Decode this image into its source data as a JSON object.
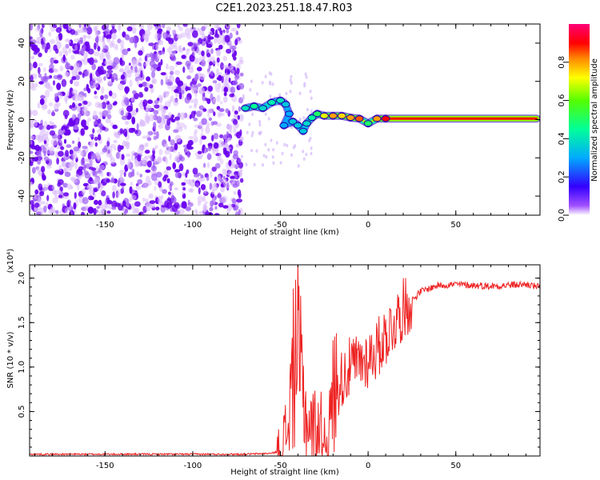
{
  "title": "C2E1.2023.251.18.47.R03",
  "chart_data": [
    {
      "type": "heatmap",
      "xlabel": "Height of straight line (km)",
      "ylabel": "Frequency (Hz)",
      "xlim": [
        -193,
        98
      ],
      "ylim": [
        -50,
        50
      ],
      "xticks": [
        -150,
        -100,
        -50,
        0,
        50
      ],
      "yticks": [
        -40,
        -20,
        0,
        20,
        40
      ],
      "colorbar": {
        "label": "Normalized spectral amplitude",
        "range": [
          0,
          1
        ],
        "ticks": [
          "0.0",
          "0.2",
          "0.4",
          "0.6",
          "0.8"
        ],
        "colors": [
          "#ffffff",
          "#7a00ff",
          "#0000ff",
          "#00c8ff",
          "#00ff80",
          "#80ff00",
          "#ffff00",
          "#ff8000",
          "#ff0000",
          "#ff0080"
        ]
      },
      "features": {
        "noise_region_x": [
          -193,
          -72
        ],
        "noise_amplitude": 0.12,
        "trace": [
          {
            "x": -70,
            "f": 6,
            "a": 0.4
          },
          {
            "x": -65,
            "f": 7,
            "a": 0.45
          },
          {
            "x": -60,
            "f": 6,
            "a": 0.38
          },
          {
            "x": -55,
            "f": 9,
            "a": 0.42
          },
          {
            "x": -50,
            "f": 10,
            "a": 0.4
          },
          {
            "x": -47,
            "f": 8,
            "a": 0.35
          },
          {
            "x": -45,
            "f": 3,
            "a": 0.3
          },
          {
            "x": -48,
            "f": -3,
            "a": 0.3
          },
          {
            "x": -43,
            "f": -1,
            "a": 0.35
          },
          {
            "x": -40,
            "f": -3,
            "a": 0.35
          },
          {
            "x": -37,
            "f": -6,
            "a": 0.35
          },
          {
            "x": -35,
            "f": -2,
            "a": 0.38
          },
          {
            "x": -32,
            "f": 1,
            "a": 0.45
          },
          {
            "x": -29,
            "f": 3,
            "a": 0.5
          },
          {
            "x": -25,
            "f": 2,
            "a": 0.7
          },
          {
            "x": -20,
            "f": 2,
            "a": 0.8
          },
          {
            "x": -15,
            "f": 2,
            "a": 0.75
          },
          {
            "x": -10,
            "f": 1,
            "a": 0.8
          },
          {
            "x": -5,
            "f": 0.5,
            "a": 0.85
          },
          {
            "x": 0,
            "f": -2,
            "a": 0.5
          },
          {
            "x": 5,
            "f": 0.5,
            "a": 0.8
          },
          {
            "x": 10,
            "f": 0.5,
            "a": 0.9
          },
          {
            "x": 96,
            "f": 0.5,
            "a": 0.9
          }
        ]
      }
    },
    {
      "type": "line",
      "xlabel": "Height of straight line (km)",
      "ylabel": "SNR (10 * v/v)",
      "y_multiplier": "(x10⁴)",
      "xlim": [
        -193,
        98
      ],
      "ylim": [
        0,
        2.15
      ],
      "xticks": [
        -150,
        -100,
        -50,
        0,
        50
      ],
      "yticks": [
        0.5,
        1.0,
        1.5,
        2.0
      ],
      "line_color": "#ee2222",
      "series": [
        {
          "x": [
            -193,
            -150,
            -100,
            -70,
            -55,
            -50,
            -46,
            -43,
            -41,
            -39,
            -37,
            -35,
            -32,
            -28,
            -25,
            -22,
            -20,
            -17,
            -14,
            -10,
            -5,
            0,
            5,
            10,
            15,
            20,
            25,
            30,
            40,
            50,
            60,
            70,
            80,
            90,
            97
          ],
          "y": [
            0.02,
            0.02,
            0.02,
            0.02,
            0.03,
            0.06,
            0.3,
            0.9,
            1.3,
            1.0,
            0.7,
            0.4,
            0.3,
            0.35,
            0.2,
            0.3,
            0.7,
            0.8,
            0.9,
            1.0,
            1.05,
            1.1,
            1.2,
            1.35,
            1.5,
            1.65,
            1.75,
            1.85,
            1.92,
            1.93,
            1.92,
            1.91,
            1.92,
            1.93,
            1.9
          ]
        }
      ]
    }
  ]
}
